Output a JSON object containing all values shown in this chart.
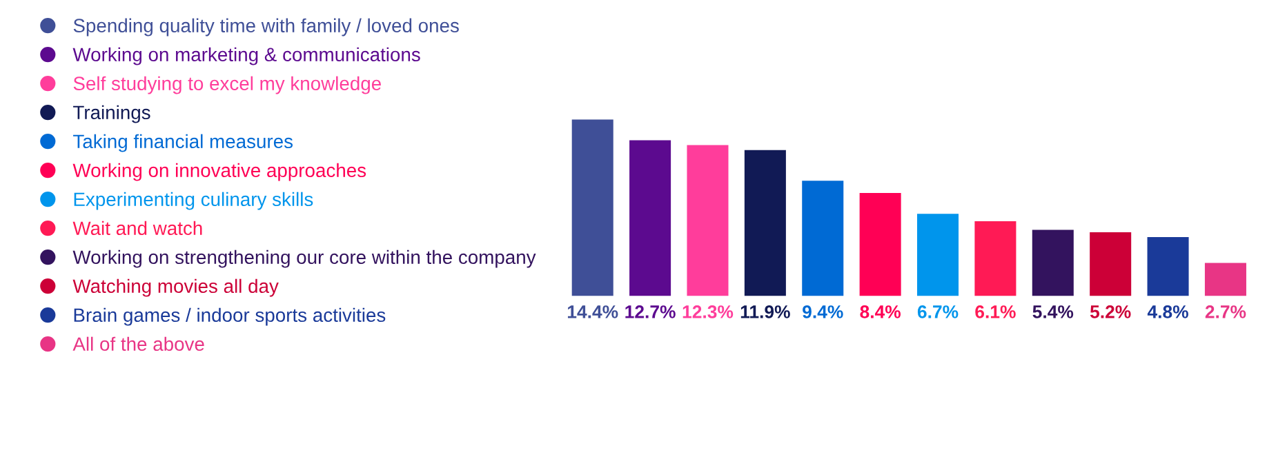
{
  "chart_data": {
    "type": "bar",
    "categories": [
      null,
      null,
      null,
      null,
      null,
      null,
      null,
      null,
      null,
      null,
      null,
      null
    ],
    "stacked": true,
    "series": [
      {
        "name": "Spending quality time with family / loved ones",
        "color": "#3f4f97",
        "values": [
          14.4,
          null,
          null,
          null,
          null,
          null,
          null,
          null,
          null,
          null,
          null,
          null
        ],
        "value_labels": [
          "14.4%",
          null,
          null,
          null,
          null,
          null,
          null,
          null,
          null,
          null,
          null,
          null
        ]
      },
      {
        "name": "Working on marketing & communications",
        "color": "#5c0a8f",
        "values": [
          null,
          12.7,
          null,
          null,
          null,
          null,
          null,
          null,
          null,
          null,
          null,
          null
        ],
        "value_labels": [
          null,
          "12.7%",
          null,
          null,
          null,
          null,
          null,
          null,
          null,
          null,
          null,
          null
        ]
      },
      {
        "name": "Self studying to excel my knowledge",
        "color": "#ff3d9b",
        "values": [
          null,
          null,
          12.3,
          null,
          null,
          null,
          null,
          null,
          null,
          null,
          null,
          null
        ],
        "value_labels": [
          null,
          null,
          "12.3%",
          null,
          null,
          null,
          null,
          null,
          null,
          null,
          null,
          null
        ]
      },
      {
        "name": "Trainings",
        "color": "#111a55",
        "values": [
          null,
          null,
          null,
          11.9,
          null,
          null,
          null,
          null,
          null,
          null,
          null,
          null
        ],
        "value_labels": [
          null,
          null,
          null,
          "11.9%",
          null,
          null,
          null,
          null,
          null,
          null,
          null,
          null
        ]
      },
      {
        "name": "Taking financial measures",
        "color": "#006ad4",
        "values": [
          null,
          null,
          null,
          null,
          9.4,
          null,
          null,
          null,
          null,
          null,
          null,
          null
        ],
        "value_labels": [
          null,
          null,
          null,
          null,
          "9.4%",
          null,
          null,
          null,
          null,
          null,
          null,
          null
        ]
      },
      {
        "name": "Working on innovative approaches",
        "color": "#ff0055",
        "values": [
          null,
          null,
          null,
          null,
          null,
          8.4,
          null,
          null,
          null,
          null,
          null,
          null
        ],
        "value_labels": [
          null,
          null,
          null,
          null,
          null,
          "8.4%",
          null,
          null,
          null,
          null,
          null,
          null
        ]
      },
      {
        "name": "Experimenting culinary skills",
        "color": "#0095ec",
        "values": [
          null,
          null,
          null,
          null,
          null,
          null,
          6.7,
          null,
          null,
          null,
          null,
          null
        ],
        "value_labels": [
          null,
          null,
          null,
          null,
          null,
          null,
          "6.7%",
          null,
          null,
          null,
          null,
          null
        ]
      },
      {
        "name": "Wait and watch",
        "color": "#ff1a55",
        "values": [
          null,
          null,
          null,
          null,
          null,
          null,
          null,
          6.1,
          null,
          null,
          null,
          null
        ],
        "value_labels": [
          null,
          null,
          null,
          null,
          null,
          null,
          null,
          "6.1%",
          null,
          null,
          null,
          null
        ]
      },
      {
        "name": "Working on strengthening our core within the company",
        "color": "#33135e",
        "values": [
          null,
          null,
          null,
          null,
          null,
          null,
          null,
          null,
          5.4,
          null,
          null,
          null
        ],
        "value_labels": [
          null,
          null,
          null,
          null,
          null,
          null,
          null,
          null,
          "5.4%",
          null,
          null,
          null
        ]
      },
      {
        "name": "Watching movies all day",
        "color": "#cc0037",
        "values": [
          null,
          null,
          null,
          null,
          null,
          null,
          null,
          null,
          null,
          5.2,
          null,
          null
        ],
        "value_labels": [
          null,
          null,
          null,
          null,
          null,
          null,
          null,
          null,
          null,
          "5.2%",
          null,
          null
        ]
      },
      {
        "name": "Brain games / indoor sports activities",
        "color": "#1a3a99",
        "values": [
          null,
          null,
          null,
          null,
          null,
          null,
          null,
          null,
          null,
          null,
          4.8,
          null
        ],
        "value_labels": [
          null,
          null,
          null,
          null,
          null,
          null,
          null,
          null,
          null,
          null,
          "4.8%",
          null
        ]
      },
      {
        "name": "All of the above",
        "color": "#e83585",
        "values": [
          null,
          null,
          null,
          null,
          null,
          null,
          null,
          null,
          null,
          null,
          null,
          2.7
        ],
        "value_labels": [
          null,
          null,
          null,
          null,
          null,
          null,
          null,
          null,
          null,
          null,
          null,
          "2.7%"
        ]
      }
    ],
    "legend": "left",
    "tick_labels": false
  }
}
